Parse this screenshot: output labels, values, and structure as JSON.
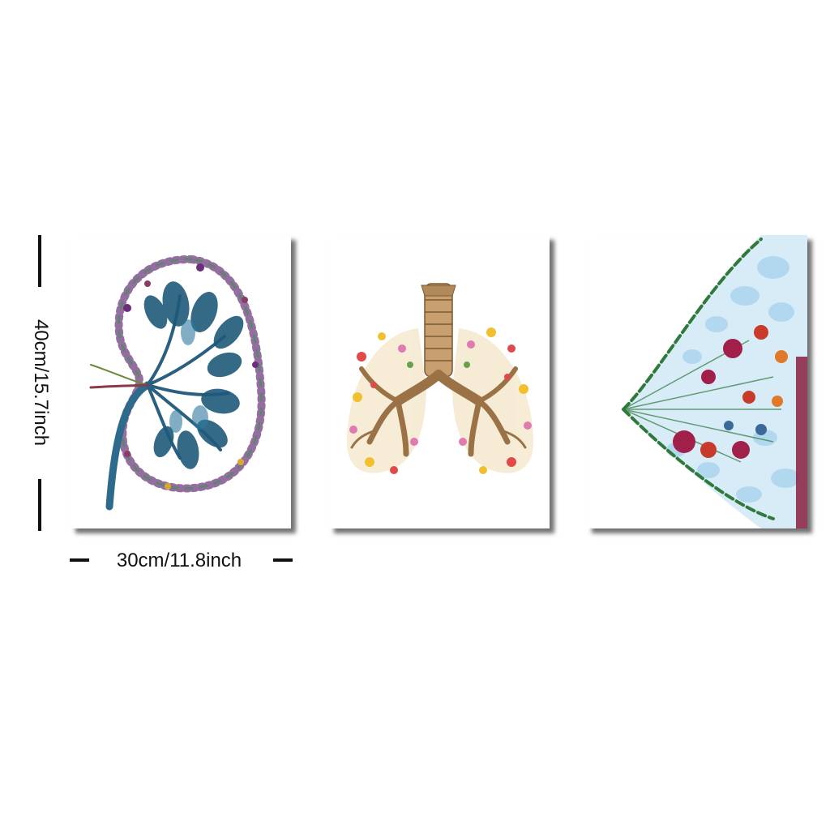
{
  "dimensions": {
    "width_label": "30cm/11.8inch",
    "height_label": "40cm/15.7inch"
  },
  "panels": [
    {
      "subject": "kidney",
      "palette": [
        "#1f5a7a",
        "#2e7aa0",
        "#6b2e7a",
        "#8c3a6a",
        "#4a8a4a",
        "#d8a830"
      ]
    },
    {
      "subject": "lungs",
      "palette": [
        "#b08a5a",
        "#8a6a3e",
        "#e04a4a",
        "#f0c030",
        "#e07ab0",
        "#6aa04a"
      ]
    },
    {
      "subject": "breast",
      "palette": [
        "#a9d4ee",
        "#2f7a3a",
        "#a0204a",
        "#c83a2a",
        "#3a6a9a",
        "#e07a2a"
      ]
    }
  ]
}
